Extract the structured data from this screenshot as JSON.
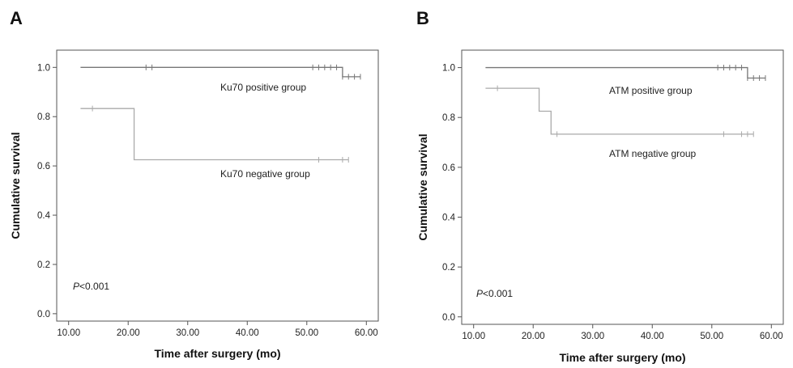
{
  "chart_data": [
    {
      "type": "line",
      "step": true,
      "panel_label": "A",
      "xlabel": "Time after surgery (mo)",
      "ylabel": "Cumulative survival",
      "xlim": [
        8,
        62
      ],
      "ylim": [
        -0.03,
        1.07
      ],
      "x_ticks": [
        10,
        20,
        30,
        40,
        50,
        60
      ],
      "x_tick_labels": [
        "10.00",
        "20.00",
        "30.00",
        "40.00",
        "50.00",
        "60.00"
      ],
      "y_ticks": [
        0.0,
        0.2,
        0.4,
        0.6,
        0.8,
        1.0
      ],
      "y_tick_labels": [
        "0.0",
        "0.2",
        "0.4",
        "0.6",
        "0.8",
        "1.0"
      ],
      "p_value_prefix": "P",
      "p_value_rest": "<0.001",
      "series": [
        {
          "name": "Ku70 positive group",
          "color": "#777777",
          "steps": [
            [
              12,
              1.0
            ],
            [
              56,
              0.962
            ],
            [
              59,
              0.962
            ]
          ],
          "censored": [
            [
              23,
              1.0
            ],
            [
              24,
              1.0
            ],
            [
              51,
              1.0
            ],
            [
              52,
              1.0
            ],
            [
              53,
              1.0
            ],
            [
              54,
              1.0
            ],
            [
              55,
              1.0
            ],
            [
              56,
              0.962
            ],
            [
              57,
              0.962
            ],
            [
              58,
              0.962
            ],
            [
              59,
              0.962
            ]
          ]
        },
        {
          "name": "Ku70 negative group",
          "color": "#aaaaaa",
          "steps": [
            [
              12,
              0.833
            ],
            [
              21,
              0.625
            ],
            [
              57,
              0.625
            ]
          ],
          "censored": [
            [
              14,
              0.833
            ],
            [
              52,
              0.625
            ],
            [
              56,
              0.625
            ],
            [
              57,
              0.625
            ]
          ]
        }
      ]
    },
    {
      "type": "line",
      "step": true,
      "panel_label": "B",
      "xlabel": "Time after surgery (mo)",
      "ylabel": "Cumulative survival",
      "xlim": [
        8,
        62
      ],
      "ylim": [
        -0.03,
        1.07
      ],
      "x_ticks": [
        10,
        20,
        30,
        40,
        50,
        60
      ],
      "x_tick_labels": [
        "10.00",
        "20.00",
        "30.00",
        "40.00",
        "50.00",
        "60.00"
      ],
      "y_ticks": [
        0.0,
        0.2,
        0.4,
        0.6,
        0.8,
        1.0
      ],
      "y_tick_labels": [
        "0.0",
        "0.2",
        "0.4",
        "0.6",
        "0.8",
        "1.0"
      ],
      "p_value_prefix": "P",
      "p_value_rest": "<0.001",
      "series": [
        {
          "name": "ATM positive group",
          "color": "#777777",
          "steps": [
            [
              12,
              1.0
            ],
            [
              56,
              0.958
            ],
            [
              59,
              0.958
            ]
          ],
          "censored": [
            [
              51,
              1.0
            ],
            [
              52,
              1.0
            ],
            [
              53,
              1.0
            ],
            [
              54,
              1.0
            ],
            [
              55,
              1.0
            ],
            [
              56,
              0.958
            ],
            [
              57,
              0.958
            ],
            [
              58,
              0.958
            ],
            [
              59,
              0.958
            ]
          ]
        },
        {
          "name": "ATM negative group",
          "color": "#aaaaaa",
          "steps": [
            [
              12,
              0.917
            ],
            [
              21,
              0.825
            ],
            [
              23,
              0.733
            ],
            [
              57,
              0.733
            ]
          ],
          "censored": [
            [
              14,
              0.917
            ],
            [
              24,
              0.733
            ],
            [
              52,
              0.733
            ],
            [
              55,
              0.733
            ],
            [
              56,
              0.733
            ],
            [
              57,
              0.733
            ]
          ]
        }
      ]
    }
  ]
}
